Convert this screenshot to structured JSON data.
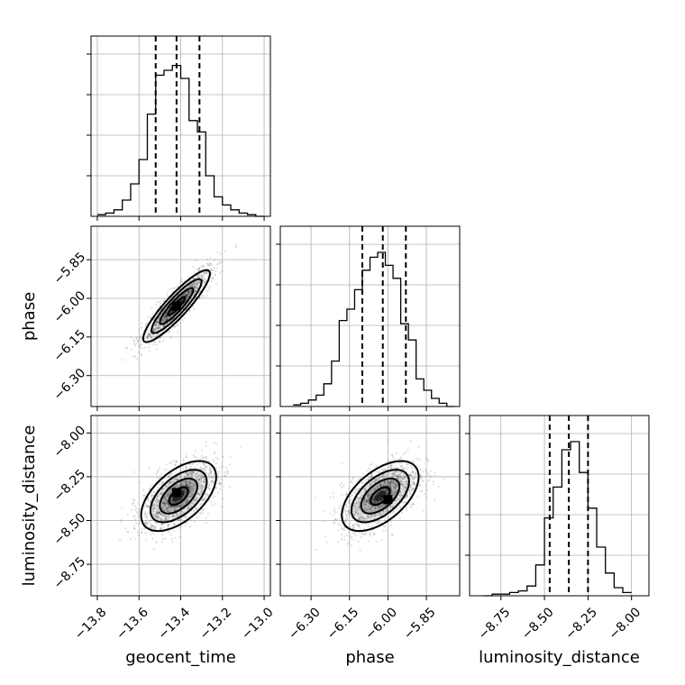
{
  "chart_data": {
    "type": "corner",
    "parameters": [
      "geocent_time",
      "phase",
      "luminosity_distance"
    ],
    "axis_labels": {
      "x": [
        "geocent_time",
        "phase",
        "luminosity_distance"
      ],
      "y_row1": "phase",
      "y_row2": "luminosity_distance"
    },
    "ranges": {
      "geocent_time": [
        -13.83,
        -12.97
      ],
      "phase": [
        -6.42,
        -5.72
      ],
      "luminosity_distance": [
        -8.93,
        -7.9
      ]
    },
    "ticks": {
      "geocent_time": [
        -13.8,
        -13.6,
        -13.4,
        -13.2,
        -13.0
      ],
      "phase": [
        -6.3,
        -6.15,
        -6.0,
        -5.85
      ],
      "luminosity_distance": [
        -8.75,
        -8.5,
        -8.25,
        -8.0
      ]
    },
    "tick_labels": {
      "geocent_time": [
        "−13.8",
        "−13.6",
        "−13.4",
        "−13.2",
        "−13.0"
      ],
      "phase": [
        "−6.30",
        "−6.15",
        "−6.00",
        "−5.85"
      ],
      "luminosity_distance": [
        "−8.75",
        "−8.50",
        "−8.25",
        "−8.00"
      ]
    },
    "quantiles": {
      "geocent_time": [
        -13.52,
        -13.42,
        -13.31
      ],
      "phase": [
        -6.1,
        -6.02,
        -5.93
      ],
      "luminosity_distance": [
        -8.47,
        -8.36,
        -8.25
      ]
    },
    "histograms": {
      "geocent_time": {
        "edges": [
          -13.8,
          -13.76,
          -13.72,
          -13.68,
          -13.64,
          -13.6,
          -13.56,
          -13.52,
          -13.48,
          -13.44,
          -13.4,
          -13.36,
          -13.32,
          -13.28,
          -13.24,
          -13.2,
          -13.16,
          -13.12,
          -13.08,
          -13.04,
          -13.0
        ],
        "counts": [
          0.01,
          0.02,
          0.04,
          0.1,
          0.2,
          0.35,
          0.63,
          0.87,
          0.9,
          0.93,
          0.85,
          0.59,
          0.52,
          0.25,
          0.12,
          0.07,
          0.04,
          0.02,
          0.01,
          0.0
        ]
      },
      "phase": {
        "edges": [
          -6.37,
          -6.34,
          -6.31,
          -6.28,
          -6.25,
          -6.22,
          -6.19,
          -6.16,
          -6.13,
          -6.1,
          -6.07,
          -6.04,
          -6.01,
          -5.98,
          -5.95,
          -5.92,
          -5.89,
          -5.86,
          -5.83,
          -5.8,
          -5.77,
          -5.74
        ],
        "counts": [
          0.01,
          0.02,
          0.04,
          0.07,
          0.14,
          0.28,
          0.53,
          0.6,
          0.72,
          0.84,
          0.92,
          0.95,
          0.87,
          0.79,
          0.51,
          0.41,
          0.17,
          0.1,
          0.05,
          0.02,
          0.0
        ]
      },
      "luminosity_distance": {
        "edges": [
          -8.85,
          -8.8,
          -8.75,
          -8.7,
          -8.65,
          -8.6,
          -8.55,
          -8.5,
          -8.45,
          -8.4,
          -8.35,
          -8.3,
          -8.25,
          -8.2,
          -8.15,
          -8.1,
          -8.05,
          -8.0
        ],
        "counts": [
          0.0,
          0.01,
          0.01,
          0.02,
          0.03,
          0.06,
          0.19,
          0.48,
          0.67,
          0.9,
          0.95,
          0.76,
          0.54,
          0.3,
          0.14,
          0.05,
          0.02
        ]
      }
    },
    "pairs": [
      {
        "x": "geocent_time",
        "y": "phase",
        "mean": [
          -13.42,
          -6.03
        ],
        "sd": [
          0.08,
          0.07
        ],
        "rho": 0.9,
        "peak": [
          -13.42,
          -6.03
        ]
      },
      {
        "x": "geocent_time",
        "y": "luminosity_distance",
        "mean": [
          -13.41,
          -8.36
        ],
        "sd": [
          0.09,
          0.1
        ],
        "rho": 0.55,
        "peak": [
          -13.42,
          -8.34
        ]
      },
      {
        "x": "phase",
        "y": "luminosity_distance",
        "mean": [
          -6.03,
          -8.36
        ],
        "sd": [
          0.075,
          0.1
        ],
        "rho": 0.55,
        "peak": [
          -6.0,
          -8.38
        ]
      }
    ],
    "contour_levels_sigma": [
      0.5,
      1.0,
      1.5,
      2.0
    ],
    "grid": true,
    "legend": "none"
  }
}
